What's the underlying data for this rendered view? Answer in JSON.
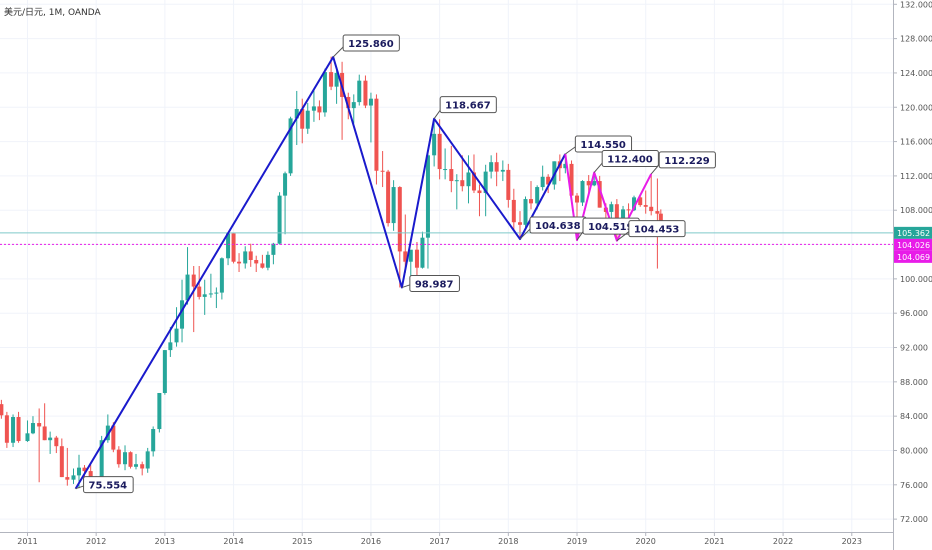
{
  "chart_data": {
    "type": "candlestick",
    "symbol": "美元/日元, 1M, OANDA",
    "ylim": [
      70.5,
      132.5
    ],
    "y_ticks": [
      "132.000",
      "128.000",
      "124.000",
      "120.000",
      "116.000",
      "112.000",
      "108.000",
      "104.000",
      "100.000",
      "96.000",
      "92.000",
      "88.000",
      "84.000",
      "80.000",
      "76.000",
      "72.000"
    ],
    "x_ticks": [
      "2011",
      "2012",
      "2013",
      "2014",
      "2015",
      "2016",
      "2017",
      "2018",
      "2019",
      "2020",
      "2021",
      "2022",
      "2023"
    ],
    "x_range": [
      2010.6,
      2023.6
    ],
    "candle_interval_years": 0.0833,
    "candles": [
      {
        "t": 2010.62,
        "o": 85.4,
        "h": 85.9,
        "l": 83.7,
        "c": 84.1
      },
      {
        "t": 2010.7,
        "o": 84.1,
        "h": 84.5,
        "l": 80.3,
        "c": 80.9
      },
      {
        "t": 2010.79,
        "o": 80.9,
        "h": 84.2,
        "l": 80.4,
        "c": 83.9
      },
      {
        "t": 2010.87,
        "o": 83.9,
        "h": 84.5,
        "l": 80.9,
        "c": 81.1
      },
      {
        "t": 2011.0,
        "o": 81.1,
        "h": 83.5,
        "l": 81.0,
        "c": 82.0
      },
      {
        "t": 2011.08,
        "o": 82.0,
        "h": 84.0,
        "l": 81.9,
        "c": 83.2
      },
      {
        "t": 2011.17,
        "o": 83.2,
        "h": 84.9,
        "l": 76.3,
        "c": 82.8
      },
      {
        "t": 2011.25,
        "o": 82.8,
        "h": 85.5,
        "l": 81.2,
        "c": 81.2
      },
      {
        "t": 2011.33,
        "o": 81.2,
        "h": 82.2,
        "l": 79.6,
        "c": 81.5
      },
      {
        "t": 2011.42,
        "o": 81.5,
        "h": 81.7,
        "l": 79.7,
        "c": 80.5
      },
      {
        "t": 2011.5,
        "o": 80.5,
        "h": 81.4,
        "l": 76.9,
        "c": 76.9
      },
      {
        "t": 2011.58,
        "o": 76.9,
        "h": 80.3,
        "l": 75.9,
        "c": 76.6
      },
      {
        "t": 2011.67,
        "o": 76.6,
        "h": 77.9,
        "l": 76.1,
        "c": 77.1
      },
      {
        "t": 2011.75,
        "o": 77.1,
        "h": 79.5,
        "l": 75.6,
        "c": 78.0
      },
      {
        "t": 2011.83,
        "o": 78.0,
        "h": 78.3,
        "l": 76.8,
        "c": 77.6
      },
      {
        "t": 2011.92,
        "o": 77.6,
        "h": 78.3,
        "l": 76.6,
        "c": 76.9
      },
      {
        "t": 2012.0,
        "o": 76.9,
        "h": 77.0,
        "l": 76.1,
        "c": 76.3
      },
      {
        "t": 2012.08,
        "o": 76.3,
        "h": 81.7,
        "l": 76.2,
        "c": 81.2
      },
      {
        "t": 2012.17,
        "o": 81.2,
        "h": 84.2,
        "l": 80.9,
        "c": 82.9
      },
      {
        "t": 2012.25,
        "o": 82.9,
        "h": 83.3,
        "l": 79.8,
        "c": 80.1
      },
      {
        "t": 2012.33,
        "o": 80.1,
        "h": 80.5,
        "l": 78.0,
        "c": 78.4
      },
      {
        "t": 2012.42,
        "o": 78.4,
        "h": 80.6,
        "l": 77.7,
        "c": 79.8
      },
      {
        "t": 2012.5,
        "o": 79.8,
        "h": 79.9,
        "l": 77.9,
        "c": 78.1
      },
      {
        "t": 2012.58,
        "o": 78.1,
        "h": 79.6,
        "l": 77.8,
        "c": 78.4
      },
      {
        "t": 2012.67,
        "o": 78.4,
        "h": 78.7,
        "l": 77.1,
        "c": 77.9
      },
      {
        "t": 2012.75,
        "o": 77.9,
        "h": 80.3,
        "l": 77.4,
        "c": 79.9
      },
      {
        "t": 2012.83,
        "o": 79.9,
        "h": 82.8,
        "l": 79.3,
        "c": 82.5
      },
      {
        "t": 2012.92,
        "o": 82.5,
        "h": 86.6,
        "l": 82.1,
        "c": 86.7
      },
      {
        "t": 2013.0,
        "o": 86.7,
        "h": 91.7,
        "l": 86.5,
        "c": 91.7
      },
      {
        "t": 2013.08,
        "o": 91.7,
        "h": 94.4,
        "l": 90.9,
        "c": 92.6
      },
      {
        "t": 2013.17,
        "o": 92.6,
        "h": 96.7,
        "l": 92.1,
        "c": 94.2
      },
      {
        "t": 2013.25,
        "o": 94.2,
        "h": 99.9,
        "l": 92.6,
        "c": 97.5
      },
      {
        "t": 2013.33,
        "o": 97.5,
        "h": 103.7,
        "l": 97.0,
        "c": 100.5
      },
      {
        "t": 2013.42,
        "o": 100.5,
        "h": 101.5,
        "l": 93.8,
        "c": 99.1
      },
      {
        "t": 2013.5,
        "o": 99.1,
        "h": 101.5,
        "l": 97.6,
        "c": 97.9
      },
      {
        "t": 2013.58,
        "o": 97.9,
        "h": 99.9,
        "l": 95.8,
        "c": 98.2
      },
      {
        "t": 2013.67,
        "o": 98.2,
        "h": 100.6,
        "l": 97.8,
        "c": 98.3
      },
      {
        "t": 2013.75,
        "o": 98.3,
        "h": 99.0,
        "l": 96.6,
        "c": 98.4
      },
      {
        "t": 2013.83,
        "o": 98.4,
        "h": 102.5,
        "l": 97.6,
        "c": 102.4
      },
      {
        "t": 2013.92,
        "o": 102.4,
        "h": 105.4,
        "l": 101.6,
        "c": 105.3
      },
      {
        "t": 2014.0,
        "o": 105.3,
        "h": 105.4,
        "l": 101.8,
        "c": 102.0
      },
      {
        "t": 2014.08,
        "o": 102.0,
        "h": 103.0,
        "l": 100.8,
        "c": 101.8
      },
      {
        "t": 2014.17,
        "o": 101.8,
        "h": 103.8,
        "l": 101.2,
        "c": 103.2
      },
      {
        "t": 2014.25,
        "o": 103.2,
        "h": 104.1,
        "l": 101.4,
        "c": 102.2
      },
      {
        "t": 2014.33,
        "o": 102.2,
        "h": 102.7,
        "l": 100.8,
        "c": 101.8
      },
      {
        "t": 2014.42,
        "o": 101.8,
        "h": 102.8,
        "l": 101.2,
        "c": 101.3
      },
      {
        "t": 2014.5,
        "o": 101.3,
        "h": 103.2,
        "l": 101.0,
        "c": 102.8
      },
      {
        "t": 2014.58,
        "o": 102.8,
        "h": 104.2,
        "l": 101.7,
        "c": 104.1
      },
      {
        "t": 2014.67,
        "o": 104.1,
        "h": 110.1,
        "l": 104.0,
        "c": 109.7
      },
      {
        "t": 2014.75,
        "o": 109.7,
        "h": 112.5,
        "l": 105.2,
        "c": 112.3
      },
      {
        "t": 2014.83,
        "o": 112.3,
        "h": 118.9,
        "l": 112.0,
        "c": 118.7
      },
      {
        "t": 2014.92,
        "o": 118.7,
        "h": 121.9,
        "l": 115.6,
        "c": 119.8
      },
      {
        "t": 2015.0,
        "o": 119.8,
        "h": 121.0,
        "l": 115.8,
        "c": 117.5
      },
      {
        "t": 2015.08,
        "o": 117.5,
        "h": 120.5,
        "l": 116.9,
        "c": 119.6
      },
      {
        "t": 2015.17,
        "o": 119.6,
        "h": 122.0,
        "l": 118.3,
        "c": 120.1
      },
      {
        "t": 2015.25,
        "o": 120.1,
        "h": 120.8,
        "l": 118.5,
        "c": 119.4
      },
      {
        "t": 2015.33,
        "o": 119.4,
        "h": 124.5,
        "l": 118.9,
        "c": 124.1
      },
      {
        "t": 2015.42,
        "o": 124.1,
        "h": 125.9,
        "l": 122.0,
        "c": 122.4
      },
      {
        "t": 2015.5,
        "o": 122.4,
        "h": 124.6,
        "l": 120.4,
        "c": 124.0
      },
      {
        "t": 2015.58,
        "o": 124.0,
        "h": 125.3,
        "l": 116.2,
        "c": 121.2
      },
      {
        "t": 2015.67,
        "o": 121.2,
        "h": 121.7,
        "l": 118.6,
        "c": 119.9
      },
      {
        "t": 2015.75,
        "o": 119.9,
        "h": 121.5,
        "l": 118.1,
        "c": 120.6
      },
      {
        "t": 2015.83,
        "o": 120.6,
        "h": 123.8,
        "l": 120.2,
        "c": 123.1
      },
      {
        "t": 2015.92,
        "o": 123.1,
        "h": 123.7,
        "l": 119.9,
        "c": 120.2
      },
      {
        "t": 2016.0,
        "o": 120.2,
        "h": 121.7,
        "l": 115.9,
        "c": 121.0
      },
      {
        "t": 2016.08,
        "o": 121.0,
        "h": 121.5,
        "l": 111.0,
        "c": 112.6
      },
      {
        "t": 2016.17,
        "o": 112.6,
        "h": 114.9,
        "l": 110.7,
        "c": 112.5
      },
      {
        "t": 2016.25,
        "o": 112.5,
        "h": 112.7,
        "l": 106.1,
        "c": 106.5
      },
      {
        "t": 2016.33,
        "o": 106.5,
        "h": 111.5,
        "l": 105.6,
        "c": 110.7
      },
      {
        "t": 2016.42,
        "o": 110.7,
        "h": 110.8,
        "l": 99.0,
        "c": 103.2
      },
      {
        "t": 2016.5,
        "o": 103.2,
        "h": 107.5,
        "l": 100.7,
        "c": 102.0
      },
      {
        "t": 2016.58,
        "o": 102.0,
        "h": 102.8,
        "l": 99.6,
        "c": 103.4
      },
      {
        "t": 2016.67,
        "o": 103.4,
        "h": 104.3,
        "l": 100.1,
        "c": 101.3
      },
      {
        "t": 2016.75,
        "o": 101.3,
        "h": 105.5,
        "l": 101.2,
        "c": 104.8
      },
      {
        "t": 2016.83,
        "o": 104.8,
        "h": 114.8,
        "l": 101.2,
        "c": 114.4
      },
      {
        "t": 2016.92,
        "o": 114.4,
        "h": 118.7,
        "l": 113.1,
        "c": 116.9
      },
      {
        "t": 2017.0,
        "o": 116.9,
        "h": 118.6,
        "l": 111.6,
        "c": 112.8
      },
      {
        "t": 2017.08,
        "o": 112.8,
        "h": 115.2,
        "l": 111.6,
        "c": 112.8
      },
      {
        "t": 2017.17,
        "o": 112.8,
        "h": 115.5,
        "l": 110.1,
        "c": 111.4
      },
      {
        "t": 2017.25,
        "o": 111.4,
        "h": 112.2,
        "l": 108.1,
        "c": 111.5
      },
      {
        "t": 2017.33,
        "o": 111.5,
        "h": 114.4,
        "l": 110.2,
        "c": 110.8
      },
      {
        "t": 2017.42,
        "o": 110.8,
        "h": 114.4,
        "l": 108.8,
        "c": 112.4
      },
      {
        "t": 2017.5,
        "o": 112.4,
        "h": 114.5,
        "l": 110.0,
        "c": 110.3
      },
      {
        "t": 2017.58,
        "o": 110.3,
        "h": 111.0,
        "l": 107.3,
        "c": 110.0
      },
      {
        "t": 2017.67,
        "o": 110.0,
        "h": 113.3,
        "l": 107.3,
        "c": 112.5
      },
      {
        "t": 2017.75,
        "o": 112.5,
        "h": 114.4,
        "l": 111.7,
        "c": 113.6
      },
      {
        "t": 2017.83,
        "o": 113.6,
        "h": 114.7,
        "l": 110.8,
        "c": 112.5
      },
      {
        "t": 2017.92,
        "o": 112.5,
        "h": 113.8,
        "l": 111.4,
        "c": 112.7
      },
      {
        "t": 2018.0,
        "o": 112.7,
        "h": 113.4,
        "l": 108.3,
        "c": 109.2
      },
      {
        "t": 2018.08,
        "o": 109.2,
        "h": 110.5,
        "l": 105.6,
        "c": 106.6
      },
      {
        "t": 2018.17,
        "o": 106.6,
        "h": 107.9,
        "l": 104.6,
        "c": 106.3
      },
      {
        "t": 2018.25,
        "o": 106.3,
        "h": 109.6,
        "l": 105.8,
        "c": 109.3
      },
      {
        "t": 2018.33,
        "o": 109.3,
        "h": 111.4,
        "l": 108.1,
        "c": 108.8
      },
      {
        "t": 2018.42,
        "o": 108.8,
        "h": 110.9,
        "l": 108.1,
        "c": 110.7
      },
      {
        "t": 2018.5,
        "o": 110.7,
        "h": 113.2,
        "l": 110.3,
        "c": 111.9
      },
      {
        "t": 2018.58,
        "o": 111.9,
        "h": 112.2,
        "l": 110.0,
        "c": 111.0
      },
      {
        "t": 2018.67,
        "o": 111.0,
        "h": 113.7,
        "l": 110.4,
        "c": 113.7
      },
      {
        "t": 2018.75,
        "o": 113.7,
        "h": 114.5,
        "l": 111.4,
        "c": 112.9
      },
      {
        "t": 2018.83,
        "o": 112.9,
        "h": 114.2,
        "l": 112.3,
        "c": 113.4
      },
      {
        "t": 2018.92,
        "o": 113.4,
        "h": 113.8,
        "l": 109.6,
        "c": 109.7
      },
      {
        "t": 2019.0,
        "o": 109.7,
        "h": 110.0,
        "l": 104.8,
        "c": 108.9
      },
      {
        "t": 2019.08,
        "o": 108.9,
        "h": 111.5,
        "l": 108.5,
        "c": 111.4
      },
      {
        "t": 2019.17,
        "o": 111.4,
        "h": 112.1,
        "l": 109.7,
        "c": 110.9
      },
      {
        "t": 2019.25,
        "o": 110.9,
        "h": 112.4,
        "l": 110.8,
        "c": 111.4
      },
      {
        "t": 2019.33,
        "o": 111.4,
        "h": 112.0,
        "l": 108.3,
        "c": 108.3
      },
      {
        "t": 2019.42,
        "o": 108.3,
        "h": 108.8,
        "l": 106.8,
        "c": 107.8
      },
      {
        "t": 2019.5,
        "o": 107.8,
        "h": 109.0,
        "l": 106.8,
        "c": 108.7
      },
      {
        "t": 2019.58,
        "o": 108.7,
        "h": 109.3,
        "l": 104.5,
        "c": 106.3
      },
      {
        "t": 2019.67,
        "o": 106.3,
        "h": 108.5,
        "l": 105.7,
        "c": 108.1
      },
      {
        "t": 2019.75,
        "o": 108.1,
        "h": 108.8,
        "l": 105.9,
        "c": 108.0
      },
      {
        "t": 2019.83,
        "o": 108.0,
        "h": 109.7,
        "l": 107.9,
        "c": 109.5
      },
      {
        "t": 2019.92,
        "o": 109.5,
        "h": 109.7,
        "l": 108.4,
        "c": 108.6
      },
      {
        "t": 2020.0,
        "o": 108.6,
        "h": 110.3,
        "l": 107.6,
        "c": 108.4
      },
      {
        "t": 2020.08,
        "o": 108.4,
        "h": 112.2,
        "l": 107.4,
        "c": 107.9
      },
      {
        "t": 2020.17,
        "o": 107.9,
        "h": 111.7,
        "l": 101.2,
        "c": 107.6
      },
      {
        "t": 2020.22,
        "o": 107.6,
        "h": 108.1,
        "l": 105.3,
        "c": 105.4
      }
    ],
    "pattern_lines": [
      {
        "color": "#1a1acc",
        "points": [
          [
            2011.7,
            75.55
          ],
          [
            2015.45,
            125.86
          ],
          [
            2016.45,
            98.99
          ],
          [
            2016.92,
            118.67
          ],
          [
            2018.17,
            104.64
          ],
          [
            2018.83,
            114.55
          ]
        ]
      },
      {
        "color": "#e81ce8",
        "points": [
          [
            2018.83,
            114.55
          ],
          [
            2019.0,
            104.52
          ],
          [
            2019.25,
            112.4
          ],
          [
            2019.58,
            104.45
          ],
          [
            2020.08,
            112.23
          ]
        ]
      }
    ],
    "callouts": [
      {
        "label": "125.860",
        "t": 2015.45,
        "v": 125.86,
        "dx": 10,
        "dy": -22
      },
      {
        "label": "118.667",
        "t": 2016.92,
        "v": 118.67,
        "dx": 6,
        "dy": -22
      },
      {
        "label": "114.550",
        "t": 2018.83,
        "v": 114.55,
        "dx": 10,
        "dy": -18
      },
      {
        "label": "112.400",
        "t": 2019.25,
        "v": 112.4,
        "dx": 8,
        "dy": -22
      },
      {
        "label": "112.229",
        "t": 2020.08,
        "v": 112.23,
        "dx": 8,
        "dy": -22
      },
      {
        "label": "104.638",
        "t": 2018.17,
        "v": 104.64,
        "dx": 10,
        "dy": -22
      },
      {
        "label": "104.519",
        "t": 2019.0,
        "v": 104.52,
        "dx": 6,
        "dy": -22
      },
      {
        "label": "104.453",
        "t": 2019.58,
        "v": 104.45,
        "dx": 12,
        "dy": -20
      },
      {
        "label": "98.987",
        "t": 2016.45,
        "v": 98.99,
        "dx": 8,
        "dy": -12
      },
      {
        "label": "75.554",
        "t": 2011.7,
        "v": 75.55,
        "dx": 8,
        "dy": -12
      }
    ],
    "horizontal_lines": [
      {
        "value": 105.362,
        "color": "#7fc9c9",
        "style": "solid",
        "tag": "105.362",
        "tag_color": "#26a69a"
      },
      {
        "value": 104.026,
        "color": "#e81ce8",
        "style": "dashed",
        "tag": "104.026",
        "tag_color": "#e81ce8"
      },
      {
        "value": 104.069,
        "color": "#e81ce8",
        "style": "none",
        "tag": "104.069",
        "tag_color": "#e81ce8"
      }
    ],
    "colors": {
      "up": "#26a69a",
      "down": "#ef5350"
    }
  }
}
